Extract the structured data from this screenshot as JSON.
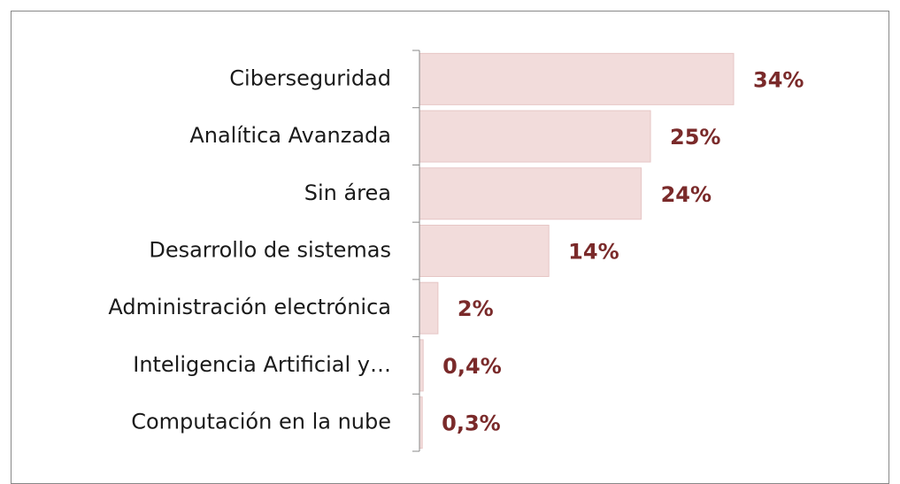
{
  "chart_data": {
    "type": "hbar",
    "categories": [
      "Ciberseguridad",
      "Analítica Avanzada",
      "Sin área",
      "Desarrollo de sistemas",
      "Administración electrónica",
      "Inteligencia Artificial y…",
      "Computación en la nube"
    ],
    "values": [
      34,
      25,
      24,
      14,
      2,
      0.4,
      0.3
    ],
    "value_labels": [
      "34%",
      "25%",
      "24%",
      "14%",
      "2%",
      "0,4%",
      "0,3%"
    ],
    "color": "#f2dcdb"
  }
}
